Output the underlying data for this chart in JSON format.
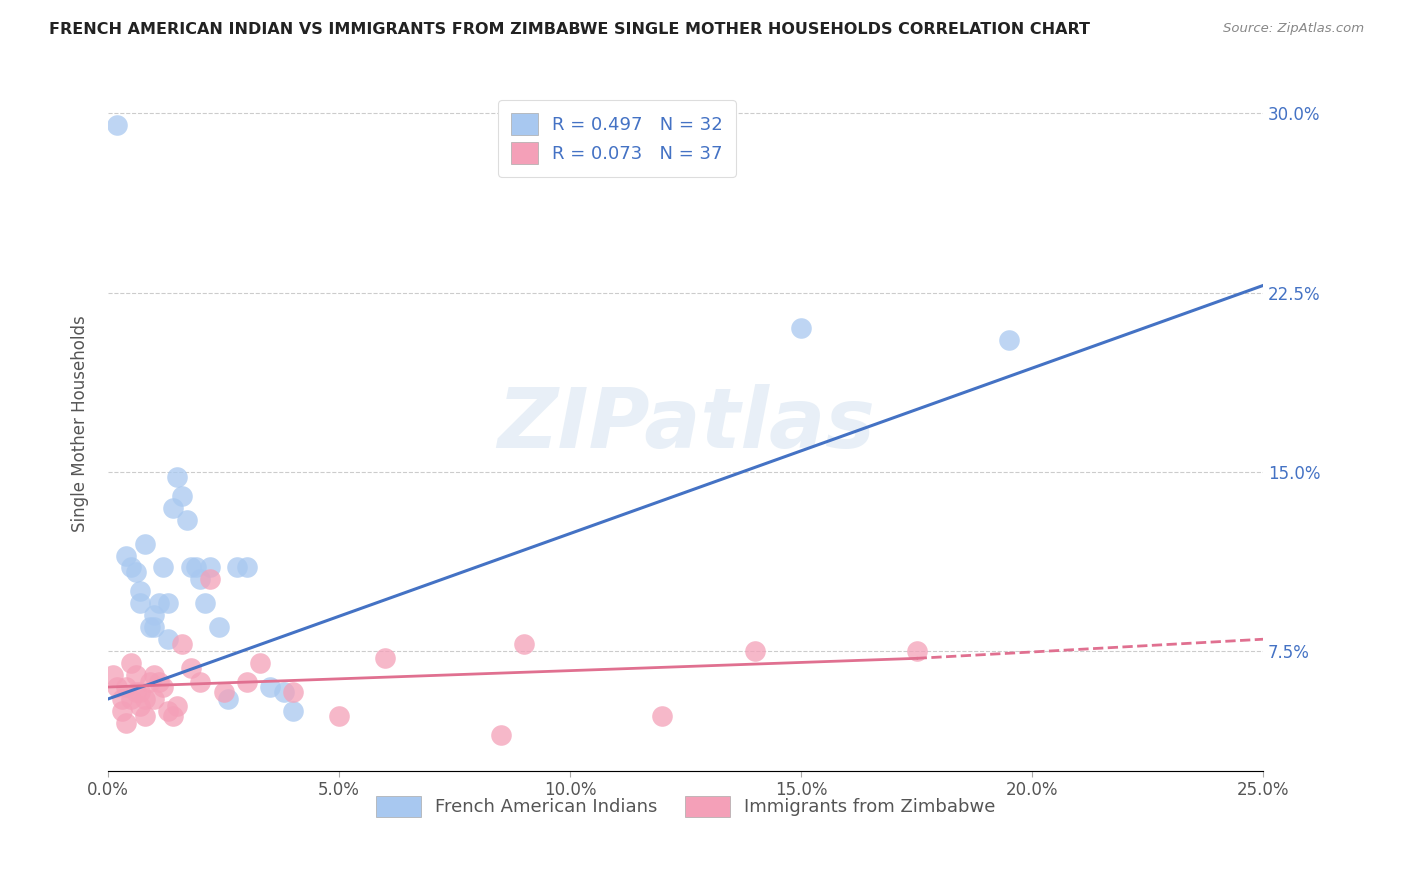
{
  "title": "FRENCH AMERICAN INDIAN VS IMMIGRANTS FROM ZIMBABWE SINGLE MOTHER HOUSEHOLDS CORRELATION CHART",
  "source": "Source: ZipAtlas.com",
  "ylabel": "Single Mother Households",
  "xlabel_ticks": [
    "0.0%",
    "5.0%",
    "10.0%",
    "15.0%",
    "20.0%",
    "25.0%"
  ],
  "xlabel_vals": [
    0.0,
    0.05,
    0.1,
    0.15,
    0.2,
    0.25
  ],
  "ytick_labels": [
    "7.5%",
    "15.0%",
    "22.5%",
    "30.0%"
  ],
  "ytick_vals": [
    0.075,
    0.15,
    0.225,
    0.3
  ],
  "xlim": [
    0.0,
    0.25
  ],
  "ylim": [
    0.025,
    0.315
  ],
  "legend1_label": "French American Indians",
  "legend2_label": "Immigrants from Zimbabwe",
  "R1": 0.497,
  "N1": 32,
  "R2": 0.073,
  "N2": 37,
  "color_blue": "#A8C8F0",
  "color_pink": "#F4A0B8",
  "line_color_blue": "#4472C4",
  "line_color_pink": "#E07090",
  "watermark": "ZIPatlas",
  "blue_x": [
    0.002,
    0.004,
    0.005,
    0.006,
    0.007,
    0.007,
    0.008,
    0.009,
    0.01,
    0.01,
    0.011,
    0.012,
    0.013,
    0.013,
    0.014,
    0.015,
    0.016,
    0.017,
    0.018,
    0.019,
    0.02,
    0.021,
    0.022,
    0.024,
    0.026,
    0.028,
    0.03,
    0.035,
    0.038,
    0.04,
    0.15,
    0.195
  ],
  "blue_y": [
    0.295,
    0.115,
    0.11,
    0.108,
    0.1,
    0.095,
    0.12,
    0.085,
    0.09,
    0.085,
    0.095,
    0.11,
    0.08,
    0.095,
    0.135,
    0.148,
    0.14,
    0.13,
    0.11,
    0.11,
    0.105,
    0.095,
    0.11,
    0.085,
    0.055,
    0.11,
    0.11,
    0.06,
    0.058,
    0.05,
    0.21,
    0.205
  ],
  "pink_x": [
    0.001,
    0.002,
    0.003,
    0.003,
    0.004,
    0.004,
    0.005,
    0.005,
    0.006,
    0.006,
    0.007,
    0.007,
    0.008,
    0.008,
    0.009,
    0.01,
    0.01,
    0.011,
    0.012,
    0.013,
    0.014,
    0.015,
    0.016,
    0.018,
    0.02,
    0.022,
    0.025,
    0.03,
    0.033,
    0.04,
    0.05,
    0.06,
    0.085,
    0.09,
    0.12,
    0.14,
    0.175
  ],
  "pink_y": [
    0.065,
    0.06,
    0.055,
    0.05,
    0.06,
    0.045,
    0.07,
    0.055,
    0.058,
    0.065,
    0.058,
    0.052,
    0.048,
    0.055,
    0.062,
    0.065,
    0.055,
    0.062,
    0.06,
    0.05,
    0.048,
    0.052,
    0.078,
    0.068,
    0.062,
    0.105,
    0.058,
    0.062,
    0.07,
    0.058,
    0.048,
    0.072,
    0.04,
    0.078,
    0.048,
    0.075,
    0.075
  ],
  "blue_line_x0": 0.0,
  "blue_line_x1": 0.25,
  "blue_line_y0": 0.055,
  "blue_line_y1": 0.228,
  "pink_line_x0": 0.0,
  "pink_line_x1": 0.175,
  "pink_line_x1_dash": 0.25,
  "pink_line_y0": 0.06,
  "pink_line_y1": 0.072,
  "pink_line_y1_dash": 0.08
}
